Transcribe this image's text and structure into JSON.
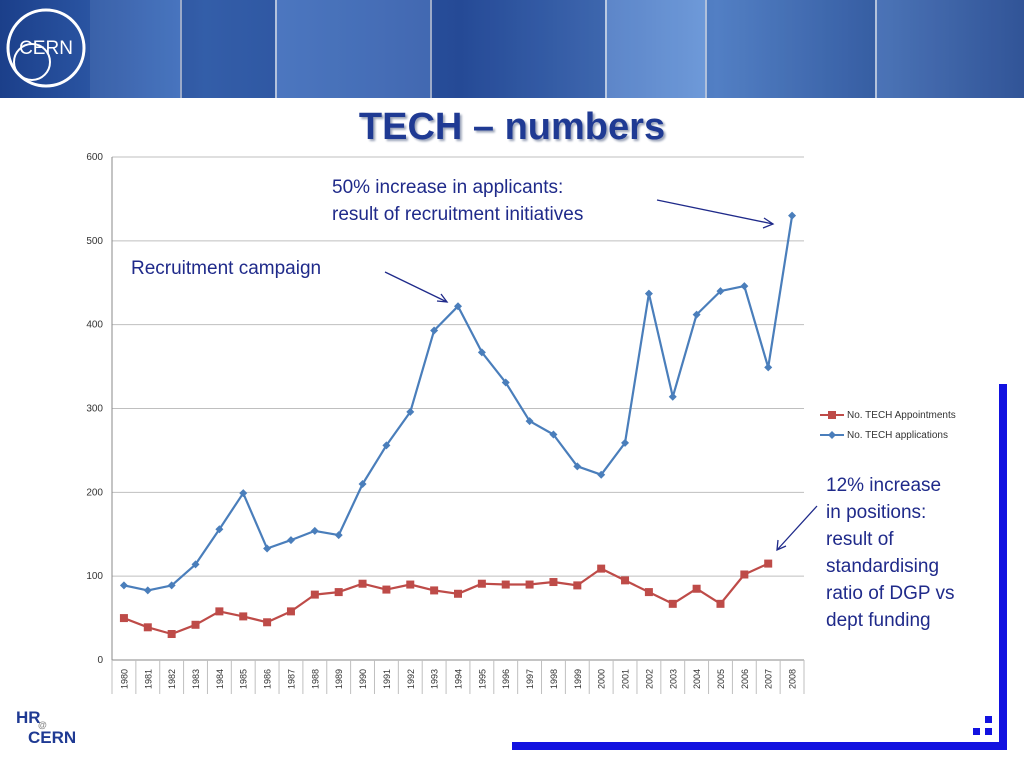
{
  "slide": {
    "title": "TECH – numbers",
    "banner_logo_text": "CERN",
    "footer_logo": "HR CERN"
  },
  "annotations": {
    "applicants_line1": "50% increase in applicants:",
    "applicants_line2": "result of recruitment initiatives",
    "campaign": "Recruitment campaign",
    "positions_lines": [
      "12% increase",
      "in positions:",
      "result of",
      "standardising",
      "ratio of DGP vs",
      "dept funding"
    ]
  },
  "colors": {
    "applications": "#4a7ebb",
    "appointments": "#be4b48",
    "title": "#1f3a93",
    "annotation": "#1f2a8a",
    "accent_bar": "#1212e0"
  },
  "chart_data": {
    "type": "line",
    "x": [
      "1980",
      "1981",
      "1982",
      "1983",
      "1984",
      "1985",
      "1986",
      "1987",
      "1988",
      "1989",
      "1990",
      "1991",
      "1992",
      "1993",
      "1994",
      "1995",
      "1996",
      "1997",
      "1998",
      "1999",
      "2000",
      "2001",
      "2002",
      "2003",
      "2004",
      "2005",
      "2006",
      "2007",
      "2008"
    ],
    "y_ticks": [
      "0",
      "100",
      "200",
      "300",
      "400",
      "500",
      "600"
    ],
    "ylim": [
      0,
      600
    ],
    "grid": true,
    "legend_position": "right",
    "series": [
      {
        "name": "No. TECH Appointments",
        "marker": "square",
        "values": [
          50,
          39,
          31,
          42,
          58,
          52,
          45,
          58,
          78,
          81,
          91,
          84,
          90,
          83,
          79,
          91,
          90,
          90,
          93,
          89,
          109,
          95,
          81,
          67,
          85,
          67,
          102,
          115,
          null
        ]
      },
      {
        "name": "No. TECH applications",
        "marker": "diamond",
        "values": [
          89,
          83,
          89,
          114,
          156,
          199,
          133,
          143,
          154,
          149,
          210,
          256,
          296,
          393,
          422,
          367,
          331,
          285,
          269,
          231,
          221,
          259,
          437,
          314,
          412,
          440,
          446,
          349,
          530
        ]
      }
    ]
  }
}
